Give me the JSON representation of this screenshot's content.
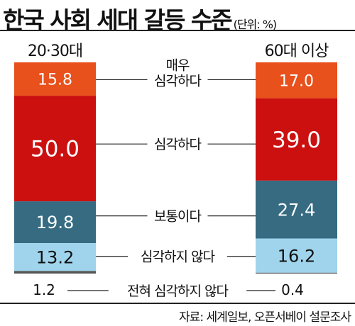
{
  "title": "한국 사회 세대 갈등 수준",
  "unit": "(단위: %)",
  "source": "자료: 세계일보, 오픈서베이 설문조사",
  "chart_data": {
    "type": "bar",
    "stacked": true,
    "columns": [
      "20·30대",
      "60대 이상"
    ],
    "series": [
      {
        "name": "매우 심각하다",
        "label_lines": [
          "매우",
          "심각하다"
        ],
        "values": [
          15.8,
          17.0
        ],
        "color": "#e8501c"
      },
      {
        "name": "심각하다",
        "label_lines": [
          "심각하다"
        ],
        "values": [
          50.0,
          39.0
        ],
        "color": "#cc1010"
      },
      {
        "name": "보통이다",
        "label_lines": [
          "보통이다"
        ],
        "values": [
          19.8,
          27.4
        ],
        "color": "#366b82"
      },
      {
        "name": "심각하지 않다",
        "label_lines": [
          "심각하지 않다"
        ],
        "values": [
          13.2,
          16.2
        ],
        "color": "#9fd4ec"
      },
      {
        "name": "전혀 심각하지 않다",
        "label_lines": [
          "전혀 심각하지 않다"
        ],
        "values": [
          1.2,
          0.4
        ],
        "color": "#555555"
      }
    ],
    "value_labels": [
      [
        "15.8",
        "50.0",
        "19.8",
        "13.2",
        "1.2"
      ],
      [
        "17.0",
        "39.0",
        "27.4",
        "16.2",
        "0.4"
      ]
    ]
  }
}
